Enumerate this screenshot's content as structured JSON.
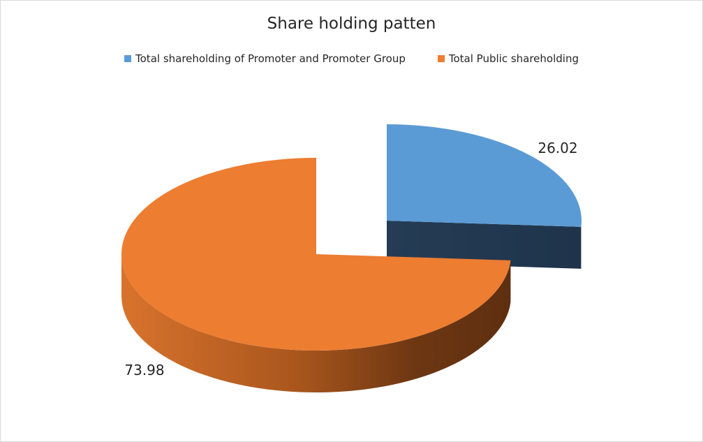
{
  "chart_data": {
    "type": "pie",
    "title": "Share holding patten",
    "legend_position": "top",
    "exploded_slice": "Total shareholding of Promoter and Promoter Group",
    "series": [
      {
        "name": "Total shareholding of Promoter and Promoter Group",
        "value": 26.02,
        "label": "26.02",
        "color": "#5b9bd5"
      },
      {
        "name": "Total Public shareholding",
        "value": 73.98,
        "label": "73.98",
        "color": "#ed7d31"
      }
    ]
  }
}
